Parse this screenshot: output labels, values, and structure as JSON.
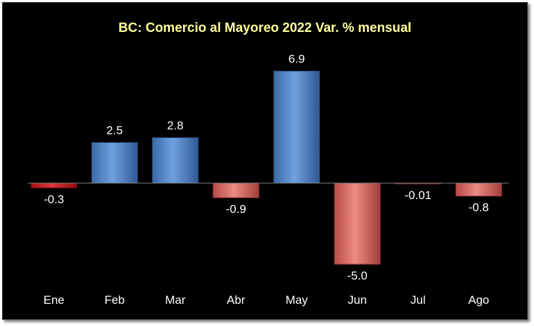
{
  "chart_data": {
    "type": "bar",
    "title": "BC: Comercio al Mayoreo 2022 Var. % mensual",
    "categories": [
      "Ene",
      "Feb",
      "Mar",
      "Abr",
      "May",
      "Jun",
      "Jul",
      "Ago"
    ],
    "values": [
      -0.3,
      2.5,
      2.8,
      -0.9,
      6.9,
      -5.0,
      -0.01,
      -0.8
    ],
    "data_labels": [
      "-0.3",
      "2.5",
      "2.8",
      "-0.9",
      "6.9",
      "-5.0",
      "-0.01",
      "-0.8"
    ],
    "xlabel": "",
    "ylabel": "",
    "ylim": [
      -6.5,
      8.0
    ],
    "grid": false,
    "legend": "none",
    "colors": {
      "background": "#000000",
      "title": "#ffff99",
      "text": "#ffffff",
      "positive": "#4f81bd",
      "negative": "#d9625f",
      "highlight_first": "#c0191c",
      "axis": "#7f7f7f"
    }
  }
}
